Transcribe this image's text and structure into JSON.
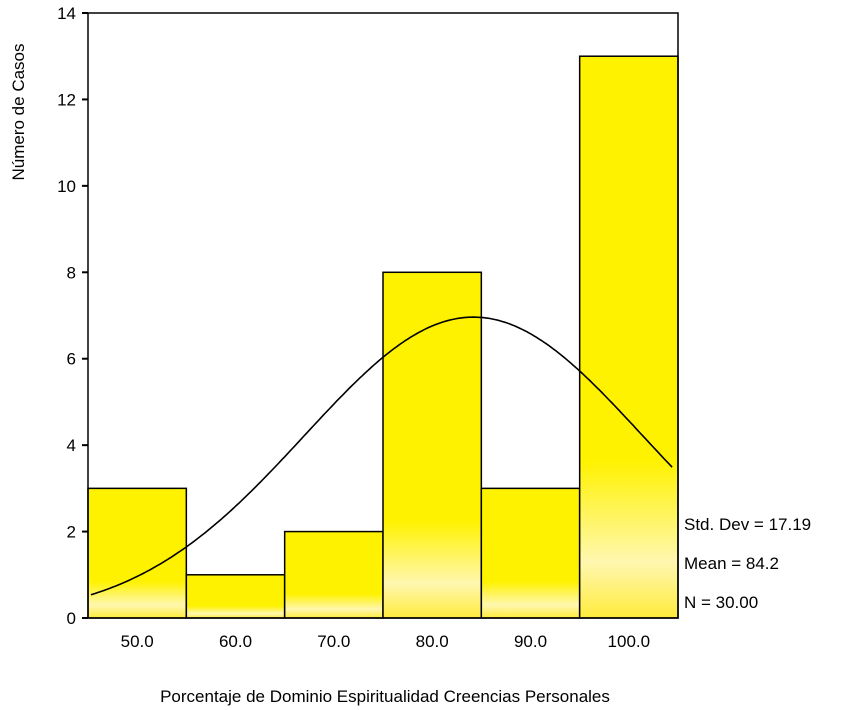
{
  "chart_data": {
    "type": "bar",
    "subtype": "histogram",
    "xlabel": "Porcentaje de Dominio Espiritualidad Creencias Personales",
    "ylabel": "Número de Casos",
    "bins": [
      {
        "center": 50.0,
        "lower": 45.0,
        "upper": 55.0,
        "count": 3
      },
      {
        "center": 60.0,
        "lower": 55.0,
        "upper": 65.0,
        "count": 1
      },
      {
        "center": 70.0,
        "lower": 65.0,
        "upper": 75.0,
        "count": 2
      },
      {
        "center": 80.0,
        "lower": 75.0,
        "upper": 85.0,
        "count": 8
      },
      {
        "center": 90.0,
        "lower": 85.0,
        "upper": 95.0,
        "count": 3
      },
      {
        "center": 100.0,
        "lower": 95.0,
        "upper": 105.0,
        "count": 13
      }
    ],
    "x_tick_labels": [
      "50.0",
      "60.0",
      "70.0",
      "80.0",
      "90.0",
      "100.0"
    ],
    "y_ticks": [
      0,
      2,
      4,
      6,
      8,
      10,
      12,
      14
    ],
    "xlim": [
      45,
      105
    ],
    "ylim": [
      0,
      14
    ],
    "normal_curve": {
      "shown": true,
      "mean": 84.2,
      "std": 17.19,
      "n": 30,
      "bin_width": 10
    },
    "stats": [
      "Std. Dev = 17.19",
      "Mean = 84.2",
      "N = 30.00"
    ],
    "colors": {
      "bar_fill": "#FFF200",
      "bar_stroke": "#000000",
      "curve": "#000000",
      "frame": "#000000"
    },
    "grid": false,
    "legend": "none"
  }
}
